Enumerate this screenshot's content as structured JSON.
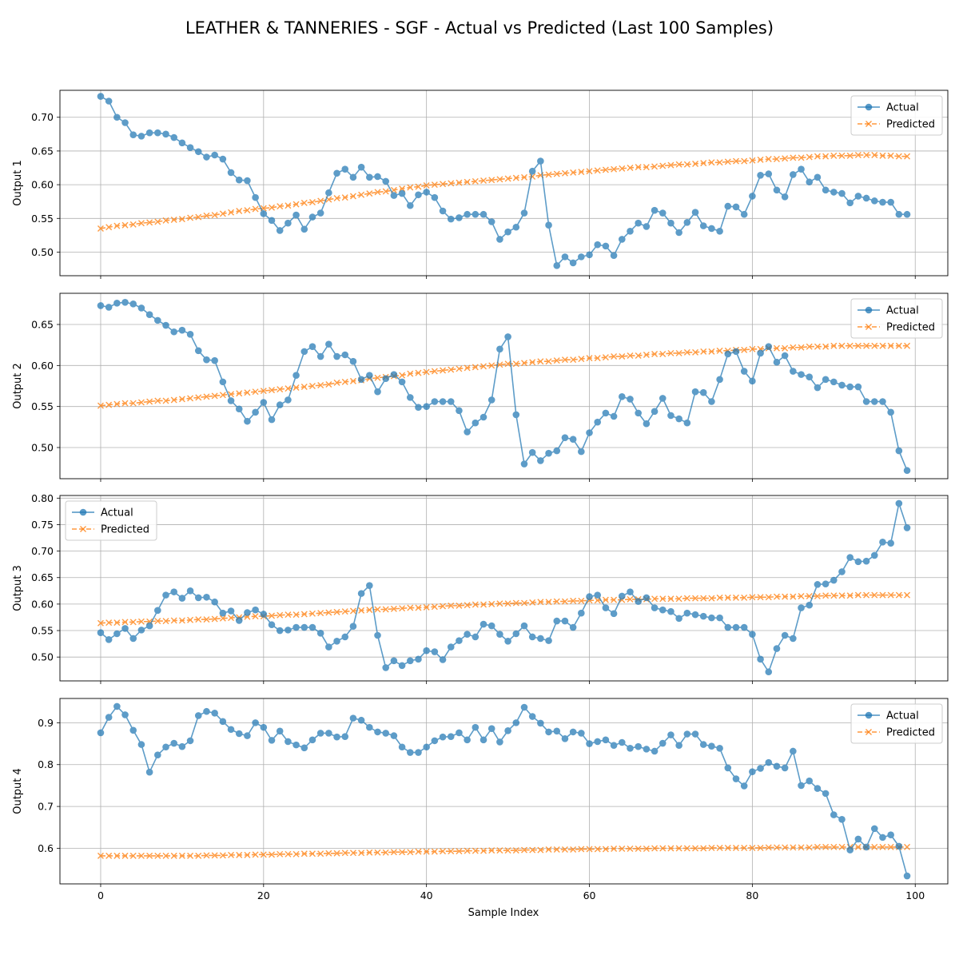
{
  "figure": {
    "title": "LEATHER & TANNERIES - SGF - Actual vs Predicted (Last 100 Samples)",
    "xlabel": "Sample Index",
    "x_ticks": [
      "0",
      "20",
      "40",
      "60",
      "80",
      "100"
    ]
  },
  "chart_data": [
    {
      "type": "line",
      "ylabel": "Output 1",
      "xlim": [
        -5,
        104
      ],
      "ylim": [
        0.465,
        0.74
      ],
      "yticks": [
        0.5,
        0.55,
        0.6,
        0.65,
        0.7
      ],
      "ytick_labels": [
        "0.50",
        "0.55",
        "0.60",
        "0.65",
        "0.70"
      ],
      "grid": true,
      "legend_position": "top-right",
      "series": [
        {
          "name": "Actual",
          "color": "#1f77b4",
          "marker": "circle",
          "values": [
            0.731,
            0.724,
            0.7,
            0.692,
            0.674,
            0.672,
            0.677,
            0.677,
            0.675,
            0.67,
            0.662,
            0.655,
            0.649,
            0.641,
            0.644,
            0.638,
            0.618,
            0.607,
            0.606,
            0.581,
            0.557,
            0.547,
            0.532,
            0.543,
            0.555,
            0.534,
            0.552,
            0.558,
            0.588,
            0.617,
            0.623,
            0.611,
            0.626,
            0.611,
            0.612,
            0.605,
            0.584,
            0.587,
            0.569,
            0.585,
            0.589,
            0.581,
            0.561,
            0.549,
            0.551,
            0.556,
            0.556,
            0.556,
            0.545,
            0.519,
            0.53,
            0.537,
            0.558,
            0.62,
            0.635,
            0.54,
            0.48,
            0.493,
            0.484,
            0.493,
            0.496,
            0.511,
            0.509,
            0.495,
            0.519,
            0.531,
            0.543,
            0.538,
            0.562,
            0.558,
            0.543,
            0.529,
            0.544,
            0.559,
            0.539,
            0.535,
            0.531,
            0.568,
            0.567,
            0.556,
            0.583,
            0.614,
            0.616,
            0.592,
            0.582,
            0.615,
            0.623,
            0.604,
            0.611,
            0.592,
            0.589,
            0.587,
            0.573,
            0.583,
            0.58,
            0.576,
            0.574,
            0.574,
            0.556,
            0.556
          ]
        },
        {
          "name": "Predicted",
          "color": "#ff7f0e",
          "marker": "x",
          "values": [
            0.535,
            0.537,
            0.539,
            0.54,
            0.541,
            0.543,
            0.544,
            0.545,
            0.547,
            0.548,
            0.549,
            0.551,
            0.552,
            0.554,
            0.555,
            0.557,
            0.559,
            0.561,
            0.562,
            0.564,
            0.565,
            0.566,
            0.568,
            0.569,
            0.571,
            0.573,
            0.574,
            0.576,
            0.578,
            0.58,
            0.581,
            0.583,
            0.585,
            0.587,
            0.589,
            0.59,
            0.592,
            0.594,
            0.596,
            0.597,
            0.599,
            0.6,
            0.601,
            0.602,
            0.603,
            0.604,
            0.605,
            0.606,
            0.607,
            0.608,
            0.609,
            0.61,
            0.611,
            0.612,
            0.614,
            0.615,
            0.616,
            0.617,
            0.618,
            0.619,
            0.62,
            0.621,
            0.622,
            0.623,
            0.624,
            0.625,
            0.626,
            0.626,
            0.627,
            0.628,
            0.629,
            0.63,
            0.63,
            0.631,
            0.632,
            0.633,
            0.633,
            0.634,
            0.635,
            0.635,
            0.636,
            0.637,
            0.638,
            0.638,
            0.639,
            0.64,
            0.64,
            0.641,
            0.642,
            0.642,
            0.643,
            0.643,
            0.643,
            0.644,
            0.644,
            0.644,
            0.643,
            0.643,
            0.642,
            0.642
          ]
        }
      ]
    },
    {
      "type": "line",
      "ylabel": "Output 2",
      "xlim": [
        -5,
        104
      ],
      "ylim": [
        0.462,
        0.688
      ],
      "yticks": [
        0.5,
        0.55,
        0.6,
        0.65
      ],
      "ytick_labels": [
        "0.50",
        "0.55",
        "0.60",
        "0.65"
      ],
      "grid": true,
      "legend_position": "top-right",
      "series": [
        {
          "name": "Actual",
          "color": "#1f77b4",
          "marker": "circle",
          "values": [
            0.673,
            0.671,
            0.676,
            0.677,
            0.675,
            0.67,
            0.662,
            0.655,
            0.649,
            0.641,
            0.643,
            0.638,
            0.618,
            0.607,
            0.606,
            0.58,
            0.557,
            0.547,
            0.532,
            0.543,
            0.555,
            0.534,
            0.552,
            0.558,
            0.588,
            0.617,
            0.623,
            0.611,
            0.626,
            0.611,
            0.613,
            0.605,
            0.583,
            0.588,
            0.568,
            0.584,
            0.589,
            0.58,
            0.561,
            0.549,
            0.55,
            0.556,
            0.556,
            0.556,
            0.545,
            0.519,
            0.53,
            0.537,
            0.558,
            0.62,
            0.635,
            0.54,
            0.48,
            0.494,
            0.484,
            0.493,
            0.496,
            0.512,
            0.51,
            0.495,
            0.518,
            0.531,
            0.542,
            0.538,
            0.562,
            0.559,
            0.542,
            0.529,
            0.544,
            0.56,
            0.539,
            0.535,
            0.53,
            0.568,
            0.567,
            0.556,
            0.583,
            0.614,
            0.617,
            0.593,
            0.581,
            0.615,
            0.623,
            0.604,
            0.612,
            0.593,
            0.589,
            0.586,
            0.573,
            0.583,
            0.58,
            0.576,
            0.574,
            0.574,
            0.556,
            0.556,
            0.556,
            0.543,
            0.496,
            0.472
          ]
        },
        {
          "name": "Predicted",
          "color": "#ff7f0e",
          "marker": "x",
          "values": [
            0.551,
            0.552,
            0.553,
            0.554,
            0.554,
            0.555,
            0.556,
            0.557,
            0.557,
            0.558,
            0.559,
            0.56,
            0.561,
            0.562,
            0.563,
            0.564,
            0.565,
            0.566,
            0.567,
            0.568,
            0.569,
            0.57,
            0.571,
            0.572,
            0.573,
            0.574,
            0.575,
            0.576,
            0.577,
            0.579,
            0.58,
            0.581,
            0.582,
            0.584,
            0.585,
            0.586,
            0.587,
            0.588,
            0.59,
            0.591,
            0.592,
            0.593,
            0.594,
            0.595,
            0.596,
            0.597,
            0.598,
            0.599,
            0.6,
            0.601,
            0.602,
            0.602,
            0.603,
            0.604,
            0.605,
            0.605,
            0.606,
            0.607,
            0.607,
            0.608,
            0.609,
            0.609,
            0.61,
            0.611,
            0.611,
            0.612,
            0.612,
            0.613,
            0.614,
            0.614,
            0.615,
            0.615,
            0.616,
            0.616,
            0.617,
            0.617,
            0.618,
            0.618,
            0.619,
            0.619,
            0.62,
            0.62,
            0.621,
            0.621,
            0.621,
            0.622,
            0.622,
            0.623,
            0.623,
            0.623,
            0.624,
            0.624,
            0.624,
            0.624,
            0.624,
            0.624,
            0.624,
            0.624,
            0.624,
            0.624
          ]
        }
      ]
    },
    {
      "type": "line",
      "ylabel": "Output 3",
      "xlim": [
        -5,
        104
      ],
      "ylim": [
        0.455,
        0.805
      ],
      "yticks": [
        0.5,
        0.55,
        0.6,
        0.65,
        0.7,
        0.75,
        0.8
      ],
      "ytick_labels": [
        "0.50",
        "0.55",
        "0.60",
        "0.65",
        "0.70",
        "0.75",
        "0.80"
      ],
      "grid": true,
      "legend_position": "top-left",
      "series": [
        {
          "name": "Actual",
          "color": "#1f77b4",
          "marker": "circle",
          "values": [
            0.546,
            0.533,
            0.544,
            0.554,
            0.535,
            0.551,
            0.559,
            0.588,
            0.617,
            0.623,
            0.611,
            0.625,
            0.612,
            0.613,
            0.604,
            0.583,
            0.587,
            0.569,
            0.584,
            0.589,
            0.581,
            0.561,
            0.55,
            0.551,
            0.556,
            0.556,
            0.556,
            0.545,
            0.519,
            0.53,
            0.538,
            0.558,
            0.62,
            0.635,
            0.541,
            0.48,
            0.493,
            0.484,
            0.493,
            0.496,
            0.512,
            0.51,
            0.495,
            0.519,
            0.531,
            0.543,
            0.538,
            0.562,
            0.559,
            0.543,
            0.53,
            0.544,
            0.559,
            0.538,
            0.535,
            0.531,
            0.568,
            0.568,
            0.556,
            0.583,
            0.614,
            0.617,
            0.593,
            0.582,
            0.615,
            0.623,
            0.605,
            0.612,
            0.593,
            0.589,
            0.586,
            0.573,
            0.583,
            0.58,
            0.577,
            0.574,
            0.574,
            0.556,
            0.556,
            0.556,
            0.543,
            0.496,
            0.472,
            0.516,
            0.541,
            0.535,
            0.593,
            0.598,
            0.637,
            0.638,
            0.645,
            0.661,
            0.688,
            0.68,
            0.681,
            0.692,
            0.717,
            0.715,
            0.79,
            0.744
          ]
        },
        {
          "name": "Predicted",
          "color": "#ff7f0e",
          "marker": "x",
          "values": [
            0.564,
            0.565,
            0.565,
            0.566,
            0.566,
            0.567,
            0.567,
            0.568,
            0.568,
            0.569,
            0.569,
            0.57,
            0.571,
            0.571,
            0.572,
            0.573,
            0.574,
            0.575,
            0.576,
            0.577,
            0.577,
            0.578,
            0.579,
            0.58,
            0.58,
            0.581,
            0.582,
            0.583,
            0.584,
            0.585,
            0.586,
            0.587,
            0.588,
            0.589,
            0.59,
            0.59,
            0.591,
            0.592,
            0.593,
            0.593,
            0.594,
            0.595,
            0.596,
            0.597,
            0.597,
            0.598,
            0.599,
            0.599,
            0.6,
            0.601,
            0.601,
            0.602,
            0.602,
            0.603,
            0.604,
            0.604,
            0.605,
            0.605,
            0.606,
            0.606,
            0.607,
            0.607,
            0.608,
            0.608,
            0.608,
            0.609,
            0.609,
            0.609,
            0.61,
            0.61,
            0.61,
            0.61,
            0.611,
            0.611,
            0.611,
            0.611,
            0.612,
            0.612,
            0.612,
            0.612,
            0.613,
            0.613,
            0.613,
            0.614,
            0.614,
            0.614,
            0.615,
            0.615,
            0.615,
            0.616,
            0.616,
            0.616,
            0.616,
            0.617,
            0.617,
            0.617,
            0.617,
            0.617,
            0.617,
            0.617
          ]
        }
      ]
    },
    {
      "type": "line",
      "ylabel": "Output 4",
      "xlim": [
        -5,
        104
      ],
      "ylim": [
        0.515,
        0.958
      ],
      "yticks": [
        0.6,
        0.7,
        0.8,
        0.9
      ],
      "ytick_labels": [
        "0.6",
        "0.7",
        "0.8",
        "0.9"
      ],
      "grid": true,
      "legend_position": "top-right",
      "series": [
        {
          "name": "Actual",
          "color": "#1f77b4",
          "marker": "circle",
          "values": [
            0.876,
            0.913,
            0.939,
            0.919,
            0.882,
            0.848,
            0.782,
            0.823,
            0.842,
            0.851,
            0.843,
            0.857,
            0.917,
            0.927,
            0.923,
            0.903,
            0.884,
            0.874,
            0.869,
            0.9,
            0.889,
            0.858,
            0.88,
            0.855,
            0.847,
            0.84,
            0.859,
            0.875,
            0.875,
            0.866,
            0.867,
            0.911,
            0.906,
            0.889,
            0.878,
            0.875,
            0.869,
            0.842,
            0.829,
            0.829,
            0.842,
            0.857,
            0.866,
            0.867,
            0.876,
            0.859,
            0.889,
            0.859,
            0.886,
            0.854,
            0.881,
            0.9,
            0.937,
            0.915,
            0.899,
            0.878,
            0.88,
            0.862,
            0.878,
            0.875,
            0.85,
            0.855,
            0.859,
            0.846,
            0.853,
            0.839,
            0.843,
            0.837,
            0.832,
            0.851,
            0.871,
            0.846,
            0.873,
            0.873,
            0.848,
            0.844,
            0.839,
            0.792,
            0.766,
            0.749,
            0.783,
            0.791,
            0.805,
            0.796,
            0.792,
            0.832,
            0.75,
            0.761,
            0.743,
            0.731,
            0.68,
            0.669,
            0.596,
            0.622,
            0.603,
            0.647,
            0.626,
            0.632,
            0.605,
            0.534
          ]
        },
        {
          "name": "Predicted",
          "color": "#ff7f0e",
          "marker": "x",
          "values": [
            0.582,
            0.582,
            0.582,
            0.582,
            0.582,
            0.582,
            0.582,
            0.582,
            0.582,
            0.582,
            0.582,
            0.582,
            0.582,
            0.583,
            0.583,
            0.583,
            0.584,
            0.584,
            0.584,
            0.585,
            0.585,
            0.585,
            0.586,
            0.586,
            0.586,
            0.587,
            0.587,
            0.587,
            0.588,
            0.588,
            0.589,
            0.589,
            0.589,
            0.59,
            0.59,
            0.59,
            0.591,
            0.591,
            0.591,
            0.592,
            0.592,
            0.592,
            0.593,
            0.593,
            0.593,
            0.594,
            0.594,
            0.594,
            0.595,
            0.595,
            0.595,
            0.595,
            0.596,
            0.596,
            0.596,
            0.597,
            0.597,
            0.597,
            0.597,
            0.598,
            0.598,
            0.598,
            0.598,
            0.599,
            0.599,
            0.599,
            0.599,
            0.599,
            0.6,
            0.6,
            0.6,
            0.6,
            0.6,
            0.6,
            0.6,
            0.601,
            0.601,
            0.601,
            0.601,
            0.601,
            0.601,
            0.601,
            0.602,
            0.602,
            0.602,
            0.602,
            0.602,
            0.602,
            0.603,
            0.603,
            0.603,
            0.603,
            0.603,
            0.603,
            0.603,
            0.603,
            0.603,
            0.603,
            0.603,
            0.603
          ]
        }
      ]
    }
  ]
}
